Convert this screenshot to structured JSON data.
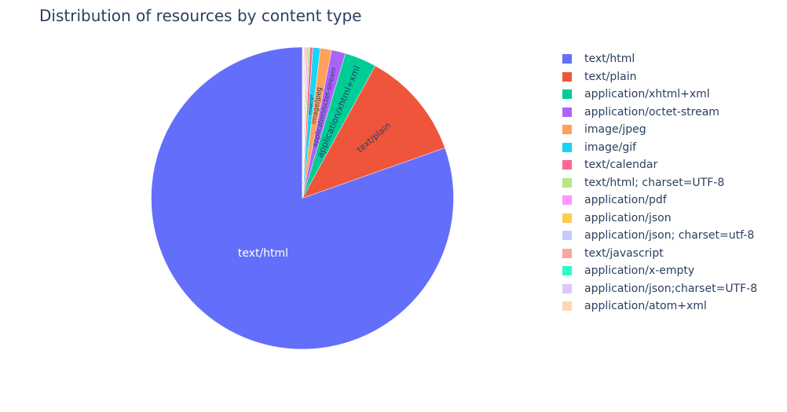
{
  "chart_data": {
    "type": "pie",
    "title": "Distribution of resources by content type",
    "legend_position": "right",
    "slices": [
      {
        "label": "text/html",
        "value": 80.4,
        "color": "#636efa",
        "text": "text/html"
      },
      {
        "label": "text/plain",
        "value": 11.6,
        "color": "#ef553b",
        "text": "text/plain"
      },
      {
        "label": "application/xhtml+xml",
        "value": 3.4,
        "color": "#00cc96",
        "text": "application/xhtml+xml"
      },
      {
        "label": "application/octet-stream",
        "value": 1.5,
        "color": "#ab63fa",
        "text": "application/octet-stream"
      },
      {
        "label": "image/jpeg",
        "value": 1.2,
        "color": "#ffa15a",
        "text": "image/jpeg"
      },
      {
        "label": "image/gif",
        "value": 0.8,
        "color": "#19d3f3",
        "text": "image/gif"
      },
      {
        "label": "text/calendar",
        "value": 0.3,
        "color": "#ff6692",
        "text": ""
      },
      {
        "label": "text/html; charset=UTF-8",
        "value": 0.2,
        "color": "#b6e880",
        "text": ""
      },
      {
        "label": "application/pdf",
        "value": 0.15,
        "color": "#ff97ff",
        "text": ""
      },
      {
        "label": "application/json",
        "value": 0.12,
        "color": "#fecb52",
        "text": ""
      },
      {
        "label": "application/json; charset=utf-8",
        "value": 0.1,
        "color": "#c6cafd",
        "text": ""
      },
      {
        "label": "text/javascript",
        "value": 0.08,
        "color": "#f7a89a",
        "text": ""
      },
      {
        "label": "application/x-empty",
        "value": 0.06,
        "color": "#2cfcc6",
        "text": ""
      },
      {
        "label": "application/json;charset=UTF-8",
        "value": 0.05,
        "color": "#dcc8fa",
        "text": ""
      },
      {
        "label": "application/atom+xml",
        "value": 0.04,
        "color": "#ffd6b5",
        "text": ""
      }
    ]
  }
}
